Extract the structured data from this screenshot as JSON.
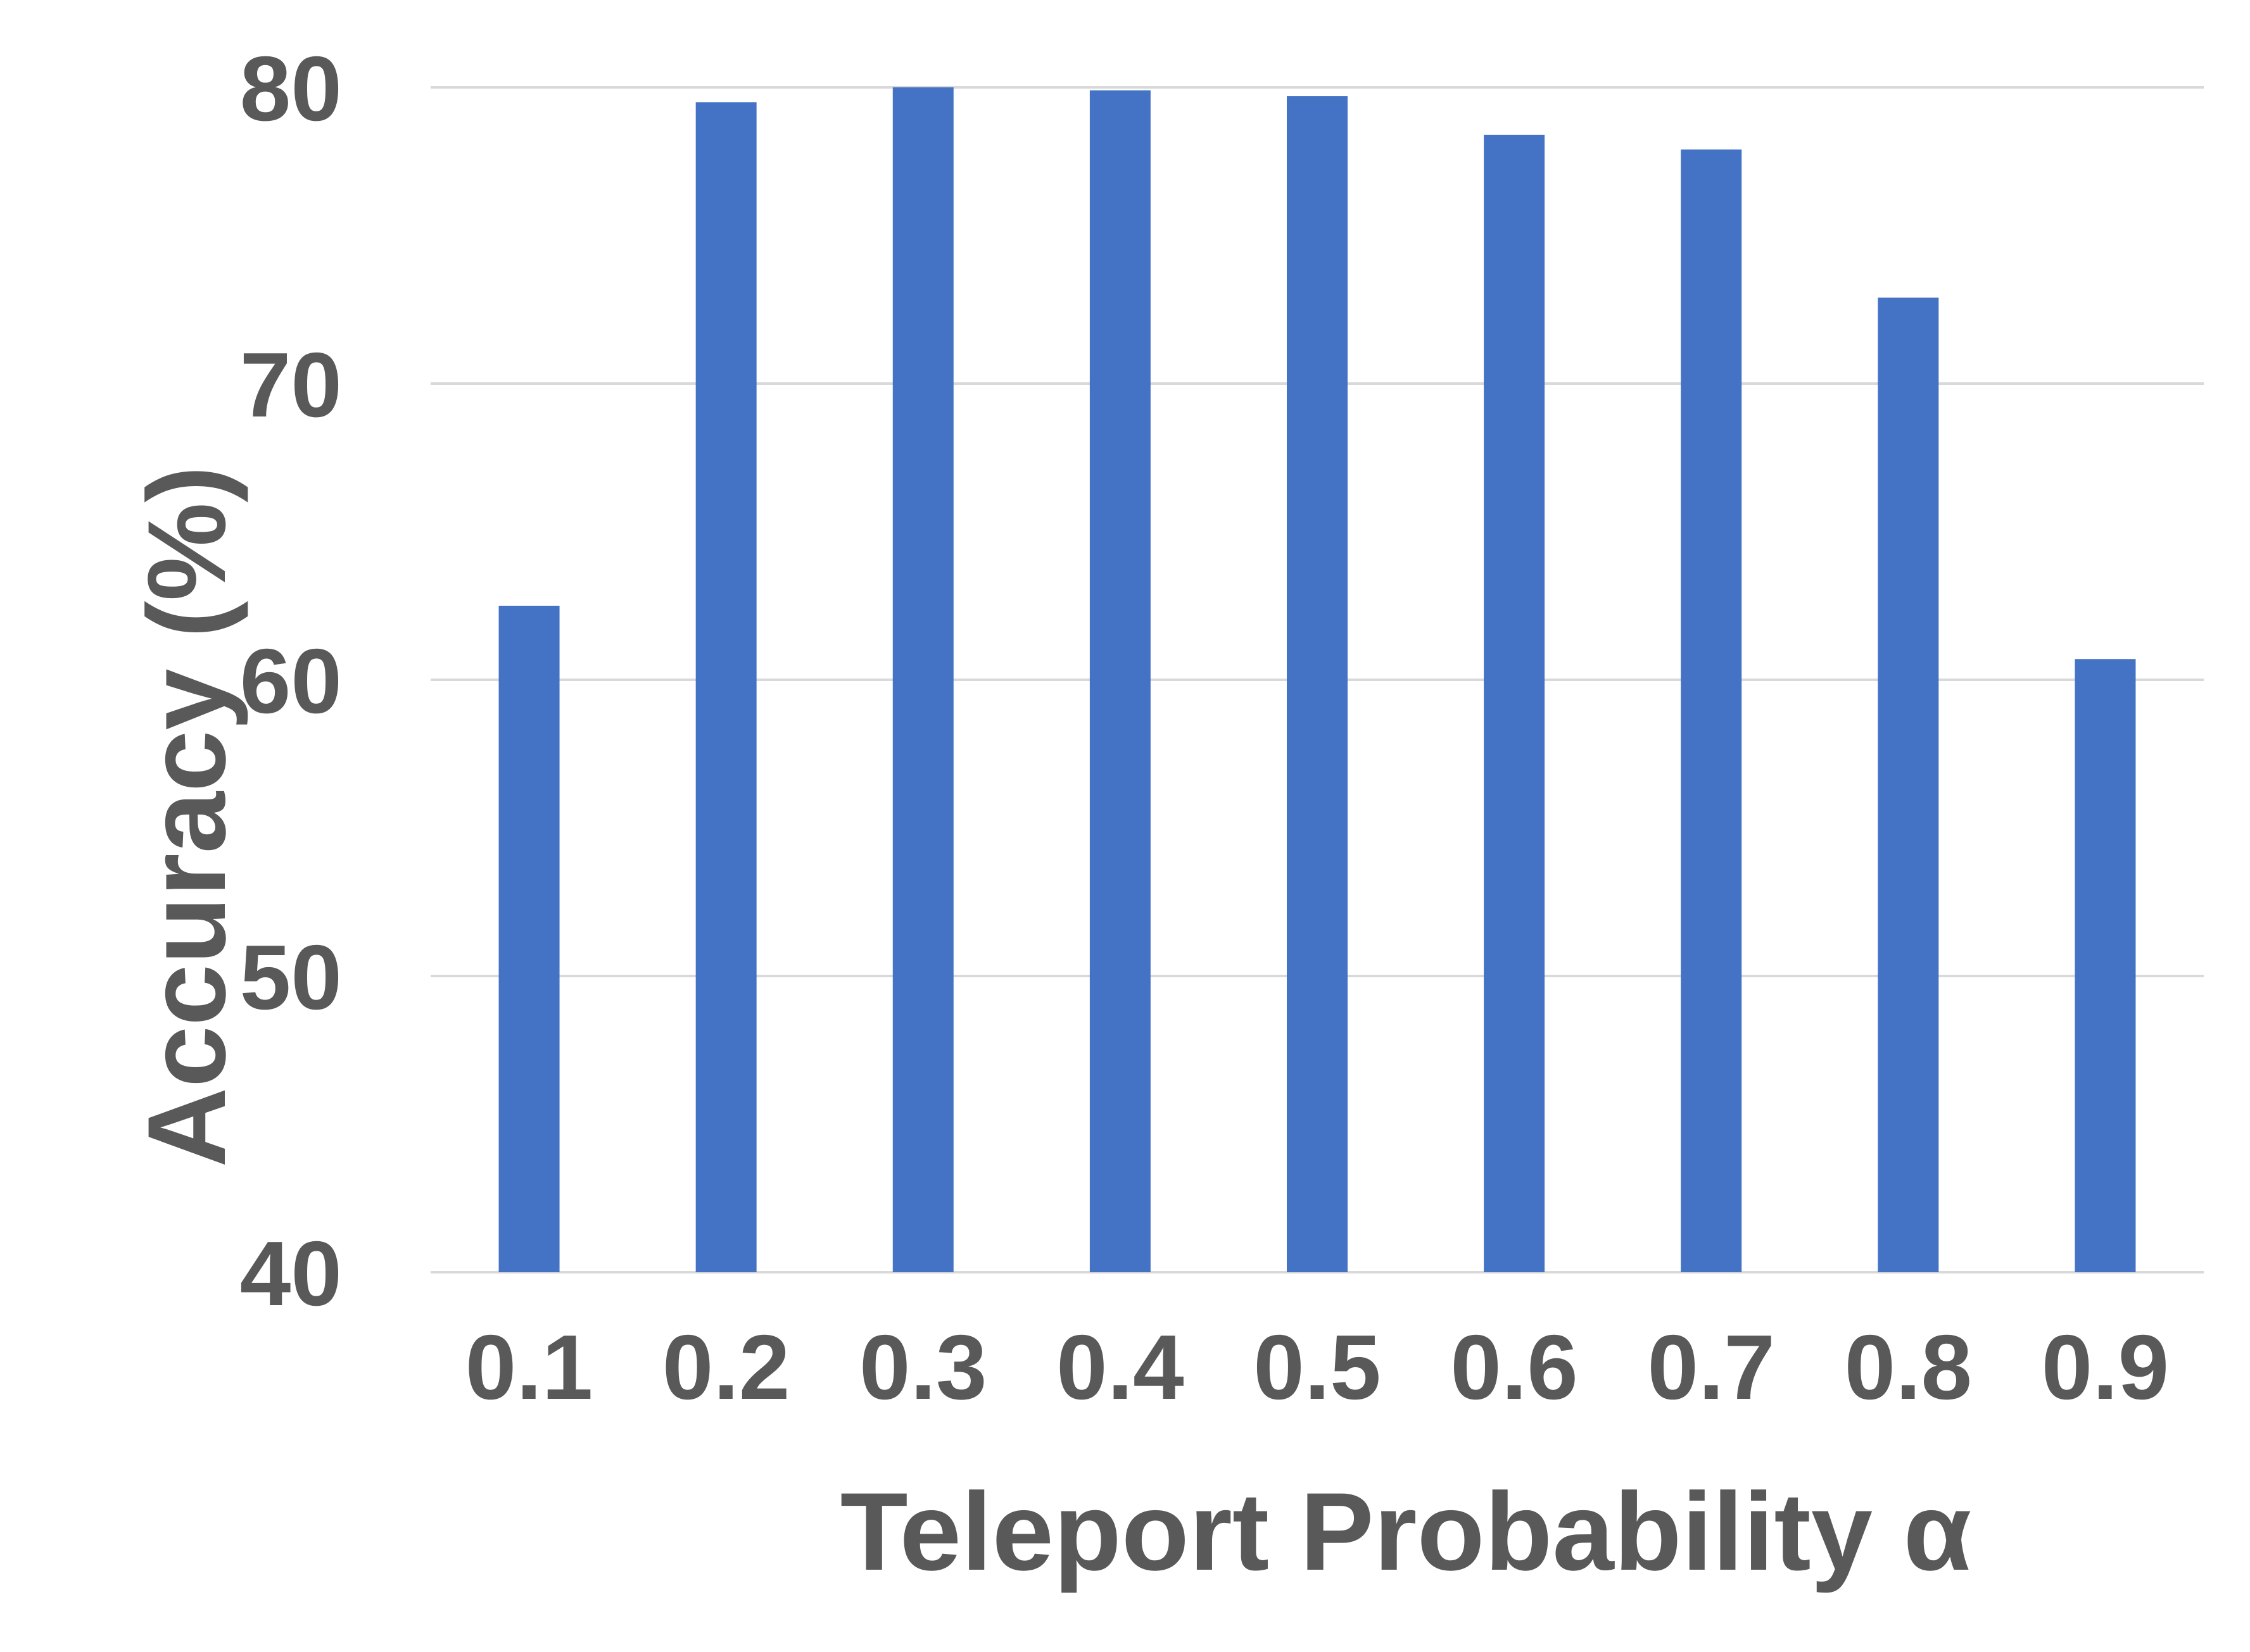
{
  "chart_data": {
    "type": "bar",
    "categories": [
      "0.1",
      "0.2",
      "0.3",
      "0.4",
      "0.5",
      "0.6",
      "0.7",
      "0.8",
      "0.9"
    ],
    "values": [
      62.5,
      79.5,
      80.0,
      79.9,
      79.7,
      78.4,
      77.9,
      72.9,
      60.7
    ],
    "xlabel": "Teleport Probability α",
    "ylabel": "Accuracy (%)",
    "ylim": [
      40,
      80
    ],
    "yticks": [
      "40",
      "50",
      "60",
      "70",
      "80"
    ],
    "grid": true,
    "legend": "none",
    "colors": {
      "bar": "#4472C4",
      "grid": "#D9D9D9",
      "text": "#595959"
    }
  }
}
